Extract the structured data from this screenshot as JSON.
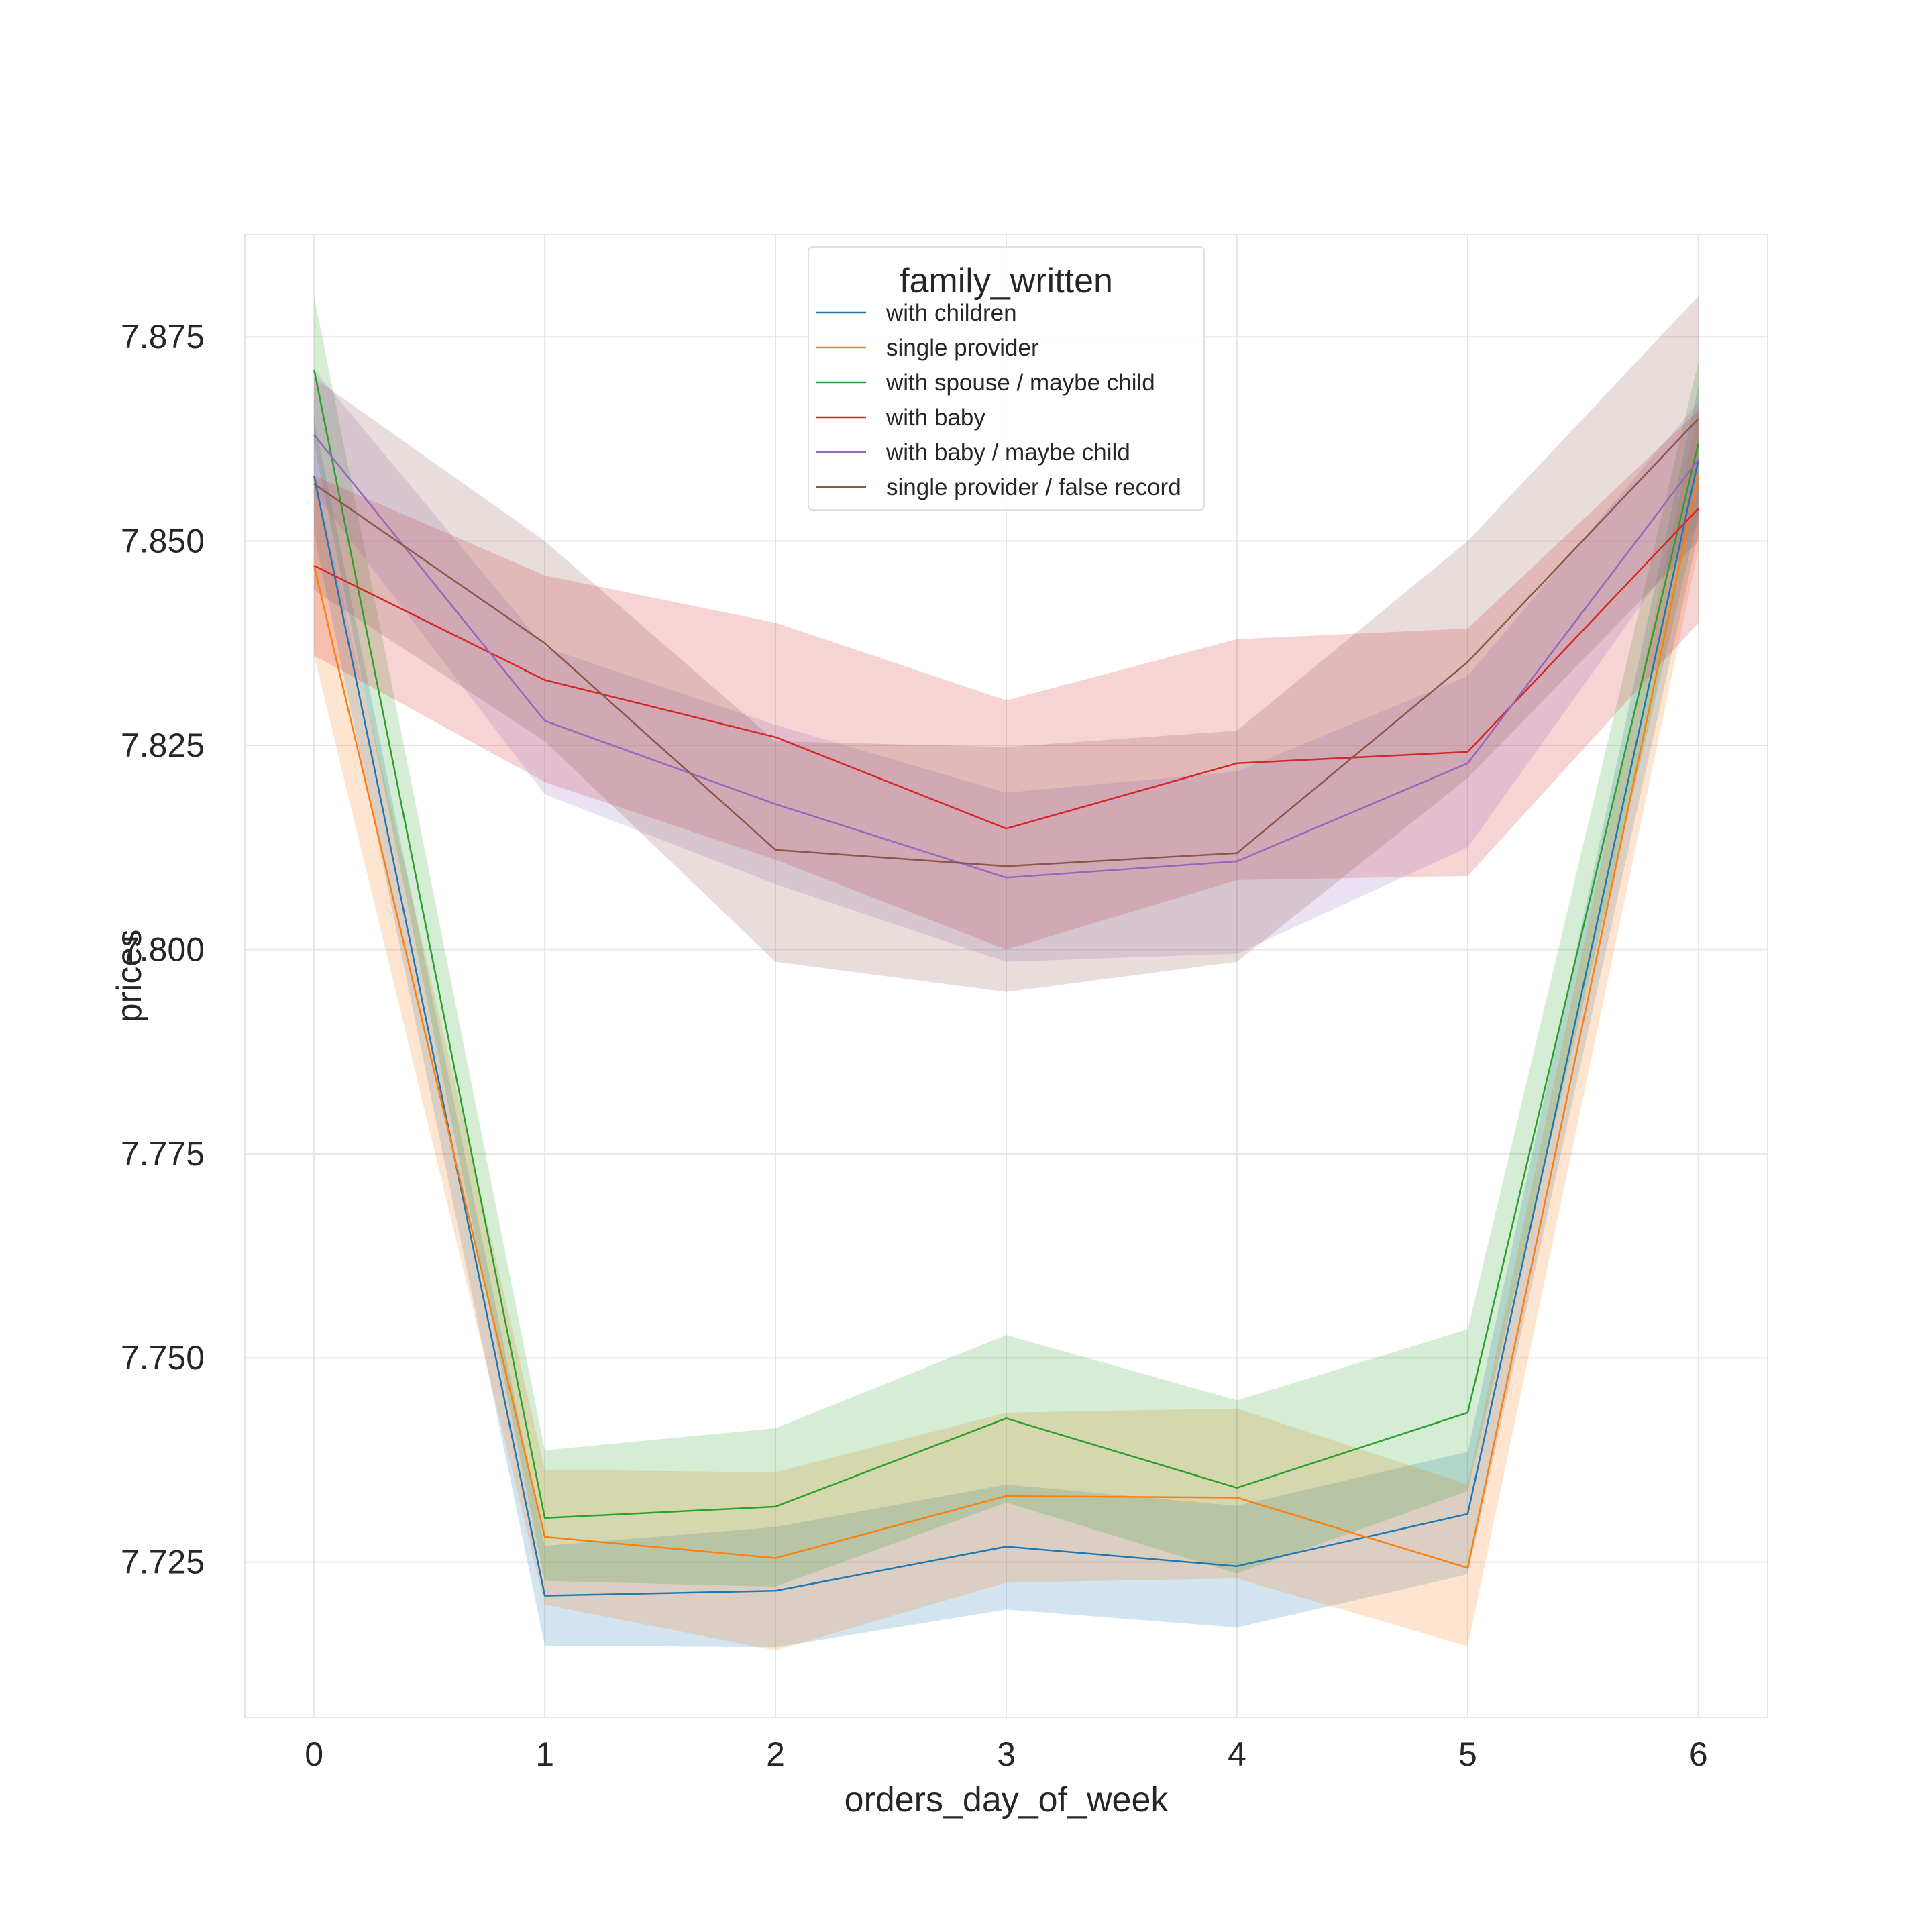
{
  "chart_data": {
    "type": "line",
    "xlabel": "orders_day_of_week",
    "ylabel": "prices",
    "x": [
      0,
      1,
      2,
      3,
      4,
      5,
      6
    ],
    "x_ticks": [
      "0",
      "1",
      "2",
      "3",
      "4",
      "5",
      "6"
    ],
    "xlim": [
      -0.3,
      6.3
    ],
    "ylim": [
      7.706,
      7.8875
    ],
    "y_ticks": [
      7.725,
      7.75,
      7.775,
      7.8,
      7.825,
      7.85,
      7.875
    ],
    "y_tick_labels": [
      "7.725",
      "7.750",
      "7.775",
      "7.800",
      "7.825",
      "7.850",
      "7.875"
    ],
    "grid": true,
    "legend": {
      "title": "family_written",
      "placement": "top-center"
    },
    "series": [
      {
        "name": "with children",
        "color": "#1f77b4",
        "values": [
          7.858,
          7.7209,
          7.7215,
          7.7269,
          7.7245,
          7.7309,
          7.86
        ],
        "lower": [
          7.851,
          7.7148,
          7.7146,
          7.7192,
          7.717,
          7.7235,
          7.851
        ],
        "upper": [
          7.865,
          7.727,
          7.7293,
          7.7345,
          7.7319,
          7.7385,
          7.869
        ]
      },
      {
        "name": "single provider",
        "color": "#ff7f0e",
        "values": [
          7.847,
          7.7281,
          7.7255,
          7.7331,
          7.7329,
          7.7243,
          7.858
        ],
        "lower": [
          7.836,
          7.7198,
          7.7142,
          7.7225,
          7.723,
          7.7147,
          7.849
        ],
        "upper": [
          7.858,
          7.7363,
          7.736,
          7.7433,
          7.7438,
          7.7345,
          7.866
        ]
      },
      {
        "name": "with spouse / maybe child",
        "color": "#2ca02c",
        "values": [
          7.871,
          7.7304,
          7.7318,
          7.7426,
          7.7341,
          7.7433,
          7.862
        ],
        "lower": [
          7.862,
          7.7227,
          7.722,
          7.7323,
          7.7236,
          7.7337,
          7.853
        ],
        "upper": [
          7.88,
          7.7387,
          7.7414,
          7.7528,
          7.7448,
          7.7535,
          7.872
        ]
      },
      {
        "name": "with baby",
        "color": "#d62728",
        "values": [
          7.847,
          7.833,
          7.826,
          7.8148,
          7.8228,
          7.8242,
          7.854
        ],
        "lower": [
          7.836,
          7.8205,
          7.811,
          7.8,
          7.8085,
          7.809,
          7.84
        ],
        "upper": [
          7.858,
          7.8458,
          7.84,
          7.8305,
          7.838,
          7.8393,
          7.866
        ]
      },
      {
        "name": "with baby / maybe child",
        "color": "#9467bd",
        "values": [
          7.863,
          7.828,
          7.8178,
          7.8088,
          7.8108,
          7.8228,
          7.86
        ],
        "lower": [
          7.856,
          7.819,
          7.808,
          7.7985,
          7.7995,
          7.8125,
          7.852
        ],
        "upper": [
          7.871,
          7.837,
          7.8275,
          7.8192,
          7.8218,
          7.8335,
          7.867
        ]
      },
      {
        "name": "single provider / false record",
        "color": "#8c564b",
        "values": [
          7.857,
          7.8375,
          7.8122,
          7.8102,
          7.8118,
          7.8352,
          7.865
        ],
        "lower": [
          7.844,
          7.8255,
          7.7985,
          7.7948,
          7.7985,
          7.821,
          7.85
        ],
        "upper": [
          7.87,
          7.85,
          7.8255,
          7.8248,
          7.8268,
          7.85,
          7.88
        ]
      }
    ]
  }
}
